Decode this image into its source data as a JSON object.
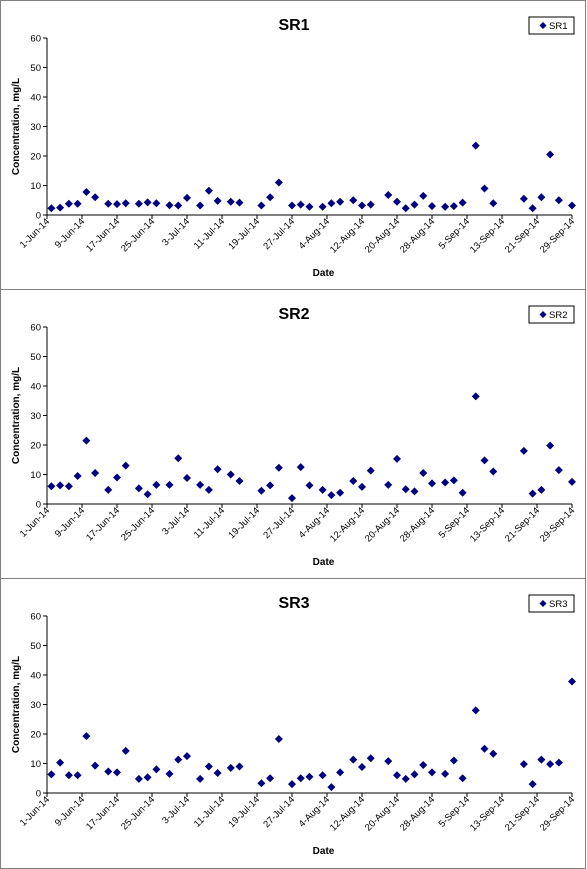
{
  "chart_data": [
    {
      "type": "scatter",
      "title": "SR1",
      "xlabel": "Date",
      "ylabel": "Concentration, mg/L",
      "ylim": [
        0,
        60
      ],
      "yticks": [
        0,
        10,
        20,
        30,
        40,
        50,
        60
      ],
      "xlim": [
        "1-Jun-14",
        "29-Sep-14"
      ],
      "xticks": [
        "1-Jun-14",
        "9-Jun-14",
        "17-Jun-14",
        "25-Jun-14",
        "3-Jul-14",
        "11-Jul-14",
        "19-Jul-14",
        "27-Jul-14",
        "4-Aug-14",
        "12-Aug-14",
        "20-Aug-14",
        "28-Aug-14",
        "5-Sep-14",
        "13-Sep-14",
        "21-Sep-14",
        "29-Sep-14"
      ],
      "grid": false,
      "legend_position": "top-right",
      "series": [
        {
          "name": "SR1",
          "color": "#000080",
          "marker": "diamond",
          "points": [
            {
              "x": "2-Jun-14",
              "y": 2.3
            },
            {
              "x": "4-Jun-14",
              "y": 2.5
            },
            {
              "x": "6-Jun-14",
              "y": 3.8
            },
            {
              "x": "8-Jun-14",
              "y": 3.8
            },
            {
              "x": "10-Jun-14",
              "y": 7.8
            },
            {
              "x": "12-Jun-14",
              "y": 6.0
            },
            {
              "x": "15-Jun-14",
              "y": 3.8
            },
            {
              "x": "17-Jun-14",
              "y": 3.7
            },
            {
              "x": "19-Jun-14",
              "y": 4.0
            },
            {
              "x": "22-Jun-14",
              "y": 3.8
            },
            {
              "x": "24-Jun-14",
              "y": 4.3
            },
            {
              "x": "26-Jun-14",
              "y": 4.0
            },
            {
              "x": "29-Jun-14",
              "y": 3.3
            },
            {
              "x": "1-Jul-14",
              "y": 3.2
            },
            {
              "x": "3-Jul-14",
              "y": 5.8
            },
            {
              "x": "6-Jul-14",
              "y": 3.2
            },
            {
              "x": "8-Jul-14",
              "y": 8.2
            },
            {
              "x": "10-Jul-14",
              "y": 4.8
            },
            {
              "x": "13-Jul-14",
              "y": 4.5
            },
            {
              "x": "15-Jul-14",
              "y": 4.2
            },
            {
              "x": "20-Jul-14",
              "y": 3.2
            },
            {
              "x": "22-Jul-14",
              "y": 6.0
            },
            {
              "x": "24-Jul-14",
              "y": 11.0
            },
            {
              "x": "27-Jul-14",
              "y": 3.2
            },
            {
              "x": "29-Jul-14",
              "y": 3.5
            },
            {
              "x": "31-Jul-14",
              "y": 2.8
            },
            {
              "x": "3-Aug-14",
              "y": 2.8
            },
            {
              "x": "5-Aug-14",
              "y": 4.0
            },
            {
              "x": "7-Aug-14",
              "y": 4.5
            },
            {
              "x": "10-Aug-14",
              "y": 5.0
            },
            {
              "x": "12-Aug-14",
              "y": 3.2
            },
            {
              "x": "14-Aug-14",
              "y": 3.5
            },
            {
              "x": "18-Aug-14",
              "y": 6.8
            },
            {
              "x": "20-Aug-14",
              "y": 4.5
            },
            {
              "x": "22-Aug-14",
              "y": 2.3
            },
            {
              "x": "24-Aug-14",
              "y": 3.5
            },
            {
              "x": "26-Aug-14",
              "y": 6.5
            },
            {
              "x": "28-Aug-14",
              "y": 3.0
            },
            {
              "x": "31-Aug-14",
              "y": 2.8
            },
            {
              "x": "2-Sep-14",
              "y": 3.0
            },
            {
              "x": "4-Sep-14",
              "y": 4.2
            },
            {
              "x": "7-Sep-14",
              "y": 23.5
            },
            {
              "x": "9-Sep-14",
              "y": 9.0
            },
            {
              "x": "11-Sep-14",
              "y": 4.0
            },
            {
              "x": "18-Sep-14",
              "y": 5.5
            },
            {
              "x": "20-Sep-14",
              "y": 2.3
            },
            {
              "x": "22-Sep-14",
              "y": 6.0
            },
            {
              "x": "24-Sep-14",
              "y": 20.5
            },
            {
              "x": "26-Sep-14",
              "y": 5.0
            },
            {
              "x": "29-Sep-14",
              "y": 3.2
            }
          ]
        }
      ]
    },
    {
      "type": "scatter",
      "title": "SR2",
      "xlabel": "Date",
      "ylabel": "Concentration, mg/L",
      "ylim": [
        0,
        60
      ],
      "yticks": [
        0,
        10,
        20,
        30,
        40,
        50,
        60
      ],
      "xlim": [
        "1-Jun-14",
        "29-Sep-14"
      ],
      "xticks": [
        "1-Jun-14",
        "9-Jun-14",
        "17-Jun-14",
        "25-Jun-14",
        "3-Jul-14",
        "11-Jul-14",
        "19-Jul-14",
        "27-Jul-14",
        "4-Aug-14",
        "12-Aug-14",
        "20-Aug-14",
        "28-Aug-14",
        "5-Sep-14",
        "13-Sep-14",
        "21-Sep-14",
        "29-Sep-14"
      ],
      "grid": false,
      "legend_position": "top-right",
      "series": [
        {
          "name": "SR2",
          "color": "#000080",
          "marker": "diamond",
          "points": [
            {
              "x": "2-Jun-14",
              "y": 6.0
            },
            {
              "x": "4-Jun-14",
              "y": 6.3
            },
            {
              "x": "6-Jun-14",
              "y": 6.0
            },
            {
              "x": "8-Jun-14",
              "y": 9.5
            },
            {
              "x": "10-Jun-14",
              "y": 21.5
            },
            {
              "x": "12-Jun-14",
              "y": 10.5
            },
            {
              "x": "15-Jun-14",
              "y": 4.8
            },
            {
              "x": "17-Jun-14",
              "y": 9.0
            },
            {
              "x": "19-Jun-14",
              "y": 13.0
            },
            {
              "x": "22-Jun-14",
              "y": 5.3
            },
            {
              "x": "24-Jun-14",
              "y": 3.3
            },
            {
              "x": "26-Jun-14",
              "y": 6.5
            },
            {
              "x": "29-Jun-14",
              "y": 6.5
            },
            {
              "x": "1-Jul-14",
              "y": 15.5
            },
            {
              "x": "3-Jul-14",
              "y": 8.8
            },
            {
              "x": "6-Jul-14",
              "y": 6.5
            },
            {
              "x": "8-Jul-14",
              "y": 4.8
            },
            {
              "x": "10-Jul-14",
              "y": 11.8
            },
            {
              "x": "13-Jul-14",
              "y": 10.0
            },
            {
              "x": "15-Jul-14",
              "y": 7.8
            },
            {
              "x": "20-Jul-14",
              "y": 4.5
            },
            {
              "x": "22-Jul-14",
              "y": 6.3
            },
            {
              "x": "24-Jul-14",
              "y": 12.3
            },
            {
              "x": "27-Jul-14",
              "y": 2.0
            },
            {
              "x": "29-Jul-14",
              "y": 12.5
            },
            {
              "x": "31-Jul-14",
              "y": 6.3
            },
            {
              "x": "3-Aug-14",
              "y": 4.8
            },
            {
              "x": "5-Aug-14",
              "y": 3.0
            },
            {
              "x": "7-Aug-14",
              "y": 3.8
            },
            {
              "x": "10-Aug-14",
              "y": 7.8
            },
            {
              "x": "12-Aug-14",
              "y": 5.8
            },
            {
              "x": "14-Aug-14",
              "y": 11.3
            },
            {
              "x": "18-Aug-14",
              "y": 6.5
            },
            {
              "x": "20-Aug-14",
              "y": 15.3
            },
            {
              "x": "22-Aug-14",
              "y": 5.0
            },
            {
              "x": "24-Aug-14",
              "y": 4.3
            },
            {
              "x": "26-Aug-14",
              "y": 10.5
            },
            {
              "x": "28-Aug-14",
              "y": 7.0
            },
            {
              "x": "31-Aug-14",
              "y": 7.3
            },
            {
              "x": "2-Sep-14",
              "y": 8.0
            },
            {
              "x": "4-Sep-14",
              "y": 3.8
            },
            {
              "x": "7-Sep-14",
              "y": 36.5
            },
            {
              "x": "9-Sep-14",
              "y": 14.8
            },
            {
              "x": "11-Sep-14",
              "y": 11.0
            },
            {
              "x": "18-Sep-14",
              "y": 18.0
            },
            {
              "x": "20-Sep-14",
              "y": 3.5
            },
            {
              "x": "22-Sep-14",
              "y": 4.8
            },
            {
              "x": "24-Sep-14",
              "y": 19.8
            },
            {
              "x": "26-Sep-14",
              "y": 11.5
            },
            {
              "x": "29-Sep-14",
              "y": 7.5
            }
          ]
        }
      ]
    },
    {
      "type": "scatter",
      "title": "SR3",
      "xlabel": "Date",
      "ylabel": "Concentration, mg/L",
      "ylim": [
        0,
        60
      ],
      "yticks": [
        0,
        10,
        20,
        30,
        40,
        50,
        60
      ],
      "xlim": [
        "1-Jun-14",
        "29-Sep-14"
      ],
      "xticks": [
        "1-Jun-14",
        "9-Jun-14",
        "17-Jun-14",
        "25-Jun-14",
        "3-Jul-14",
        "11-Jul-14",
        "19-Jul-14",
        "27-Jul-14",
        "4-Aug-14",
        "12-Aug-14",
        "20-Aug-14",
        "28-Aug-14",
        "5-Sep-14",
        "13-Sep-14",
        "21-Sep-14",
        "29-Sep-14"
      ],
      "grid": false,
      "legend_position": "top-right",
      "series": [
        {
          "name": "SR3",
          "color": "#000080",
          "marker": "diamond",
          "points": [
            {
              "x": "2-Jun-14",
              "y": 6.3
            },
            {
              "x": "4-Jun-14",
              "y": 10.3
            },
            {
              "x": "6-Jun-14",
              "y": 6.0
            },
            {
              "x": "8-Jun-14",
              "y": 6.0
            },
            {
              "x": "10-Jun-14",
              "y": 19.3
            },
            {
              "x": "12-Jun-14",
              "y": 9.3
            },
            {
              "x": "15-Jun-14",
              "y": 7.3
            },
            {
              "x": "17-Jun-14",
              "y": 7.0
            },
            {
              "x": "19-Jun-14",
              "y": 14.3
            },
            {
              "x": "22-Jun-14",
              "y": 4.8
            },
            {
              "x": "24-Jun-14",
              "y": 5.3
            },
            {
              "x": "26-Jun-14",
              "y": 8.0
            },
            {
              "x": "29-Jun-14",
              "y": 6.5
            },
            {
              "x": "1-Jul-14",
              "y": 11.3
            },
            {
              "x": "3-Jul-14",
              "y": 12.5
            },
            {
              "x": "6-Jul-14",
              "y": 4.8
            },
            {
              "x": "8-Jul-14",
              "y": 9.0
            },
            {
              "x": "10-Jul-14",
              "y": 6.8
            },
            {
              "x": "13-Jul-14",
              "y": 8.5
            },
            {
              "x": "15-Jul-14",
              "y": 9.0
            },
            {
              "x": "20-Jul-14",
              "y": 3.3
            },
            {
              "x": "22-Jul-14",
              "y": 5.0
            },
            {
              "x": "24-Jul-14",
              "y": 18.3
            },
            {
              "x": "27-Jul-14",
              "y": 3.0
            },
            {
              "x": "29-Jul-14",
              "y": 5.0
            },
            {
              "x": "31-Jul-14",
              "y": 5.5
            },
            {
              "x": "3-Aug-14",
              "y": 6.0
            },
            {
              "x": "5-Aug-14",
              "y": 2.0
            },
            {
              "x": "7-Aug-14",
              "y": 7.0
            },
            {
              "x": "10-Aug-14",
              "y": 11.3
            },
            {
              "x": "12-Aug-14",
              "y": 8.8
            },
            {
              "x": "14-Aug-14",
              "y": 11.8
            },
            {
              "x": "18-Aug-14",
              "y": 10.8
            },
            {
              "x": "20-Aug-14",
              "y": 6.0
            },
            {
              "x": "22-Aug-14",
              "y": 4.8
            },
            {
              "x": "24-Aug-14",
              "y": 6.3
            },
            {
              "x": "26-Aug-14",
              "y": 9.5
            },
            {
              "x": "28-Aug-14",
              "y": 7.0
            },
            {
              "x": "31-Aug-14",
              "y": 6.5
            },
            {
              "x": "2-Sep-14",
              "y": 11.0
            },
            {
              "x": "4-Sep-14",
              "y": 5.0
            },
            {
              "x": "7-Sep-14",
              "y": 28.0
            },
            {
              "x": "9-Sep-14",
              "y": 15.0
            },
            {
              "x": "11-Sep-14",
              "y": 13.3
            },
            {
              "x": "18-Sep-14",
              "y": 9.8
            },
            {
              "x": "20-Sep-14",
              "y": 3.0
            },
            {
              "x": "22-Sep-14",
              "y": 11.3
            },
            {
              "x": "24-Sep-14",
              "y": 9.8
            },
            {
              "x": "26-Sep-14",
              "y": 10.3
            },
            {
              "x": "29-Sep-14",
              "y": 37.8
            }
          ]
        }
      ]
    }
  ]
}
